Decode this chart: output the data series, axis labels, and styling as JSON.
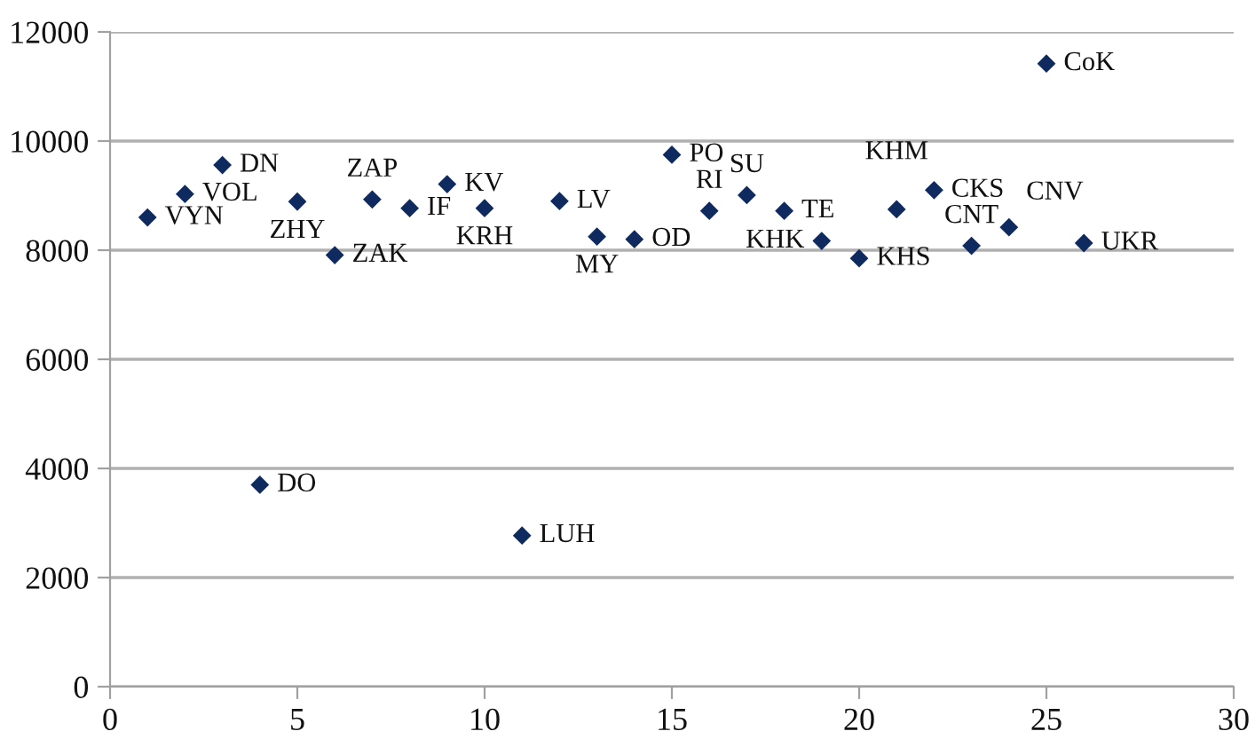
{
  "chart_data": {
    "type": "scatter",
    "x": [
      1,
      2,
      3,
      4,
      5,
      6,
      7,
      8,
      9,
      10,
      11,
      12,
      13,
      14,
      15,
      16,
      17,
      18,
      19,
      20,
      21,
      22,
      23,
      24,
      25,
      26
    ],
    "series": [
      {
        "color": "#0f2a5f",
        "values": [
          8600,
          9030,
          9560,
          3700,
          8890,
          7910,
          8930,
          8770,
          9210,
          8770,
          2770,
          8900,
          8250,
          8200,
          9750,
          8720,
          9010,
          8720,
          8170,
          7850,
          8750,
          9100,
          8080,
          8420,
          11420,
          8130
        ]
      }
    ],
    "annotations": [
      {
        "text": "VYN",
        "x": 1,
        "y": 8600
      },
      {
        "text": "VOL",
        "x": 2,
        "y": 9030
      },
      {
        "text": "DN",
        "x": 3,
        "y": 9560
      },
      {
        "text": "DO",
        "x": 4,
        "y": 3700
      },
      {
        "text": "ZHY",
        "x": 5,
        "y": 8890
      },
      {
        "text": "ZAK",
        "x": 6,
        "y": 7910
      },
      {
        "text": "ZAP",
        "x": 7,
        "y": 8930
      },
      {
        "text": "IF",
        "x": 8,
        "y": 8770
      },
      {
        "text": "KV",
        "x": 9,
        "y": 9210
      },
      {
        "text": "KRH",
        "x": 10,
        "y": 8770
      },
      {
        "text": "LUH",
        "x": 11,
        "y": 2770
      },
      {
        "text": "LV",
        "x": 12,
        "y": 8900
      },
      {
        "text": "MY",
        "x": 13,
        "y": 8250
      },
      {
        "text": "OD",
        "x": 14,
        "y": 8200
      },
      {
        "text": "PO",
        "x": 15,
        "y": 9750
      },
      {
        "text": "RI",
        "x": 16,
        "y": 8720
      },
      {
        "text": "SU",
        "x": 17,
        "y": 9010
      },
      {
        "text": "TE",
        "x": 18,
        "y": 8720
      },
      {
        "text": "KHK",
        "x": 19,
        "y": 8170
      },
      {
        "text": "KHS",
        "x": 20,
        "y": 7850
      },
      {
        "text": "KHM",
        "x": 21,
        "y": 8750
      },
      {
        "text": "CKS",
        "x": 22,
        "y": 9100
      },
      {
        "text": "CNT",
        "x": 23,
        "y": 8080
      },
      {
        "text": "CNV",
        "x": 24,
        "y": 8420
      },
      {
        "text": "CoK",
        "x": 25,
        "y": 11420
      },
      {
        "text": "UKR",
        "x": 26,
        "y": 8130
      }
    ],
    "xlim": [
      0,
      30
    ],
    "xticks": [
      0,
      5,
      10,
      15,
      20,
      25,
      30
    ],
    "ylim": [
      0,
      12000
    ],
    "yticks": [
      0,
      2000,
      4000,
      6000,
      8000,
      10000,
      12000
    ],
    "grid": "y",
    "marker": "diamond",
    "legend": false
  }
}
